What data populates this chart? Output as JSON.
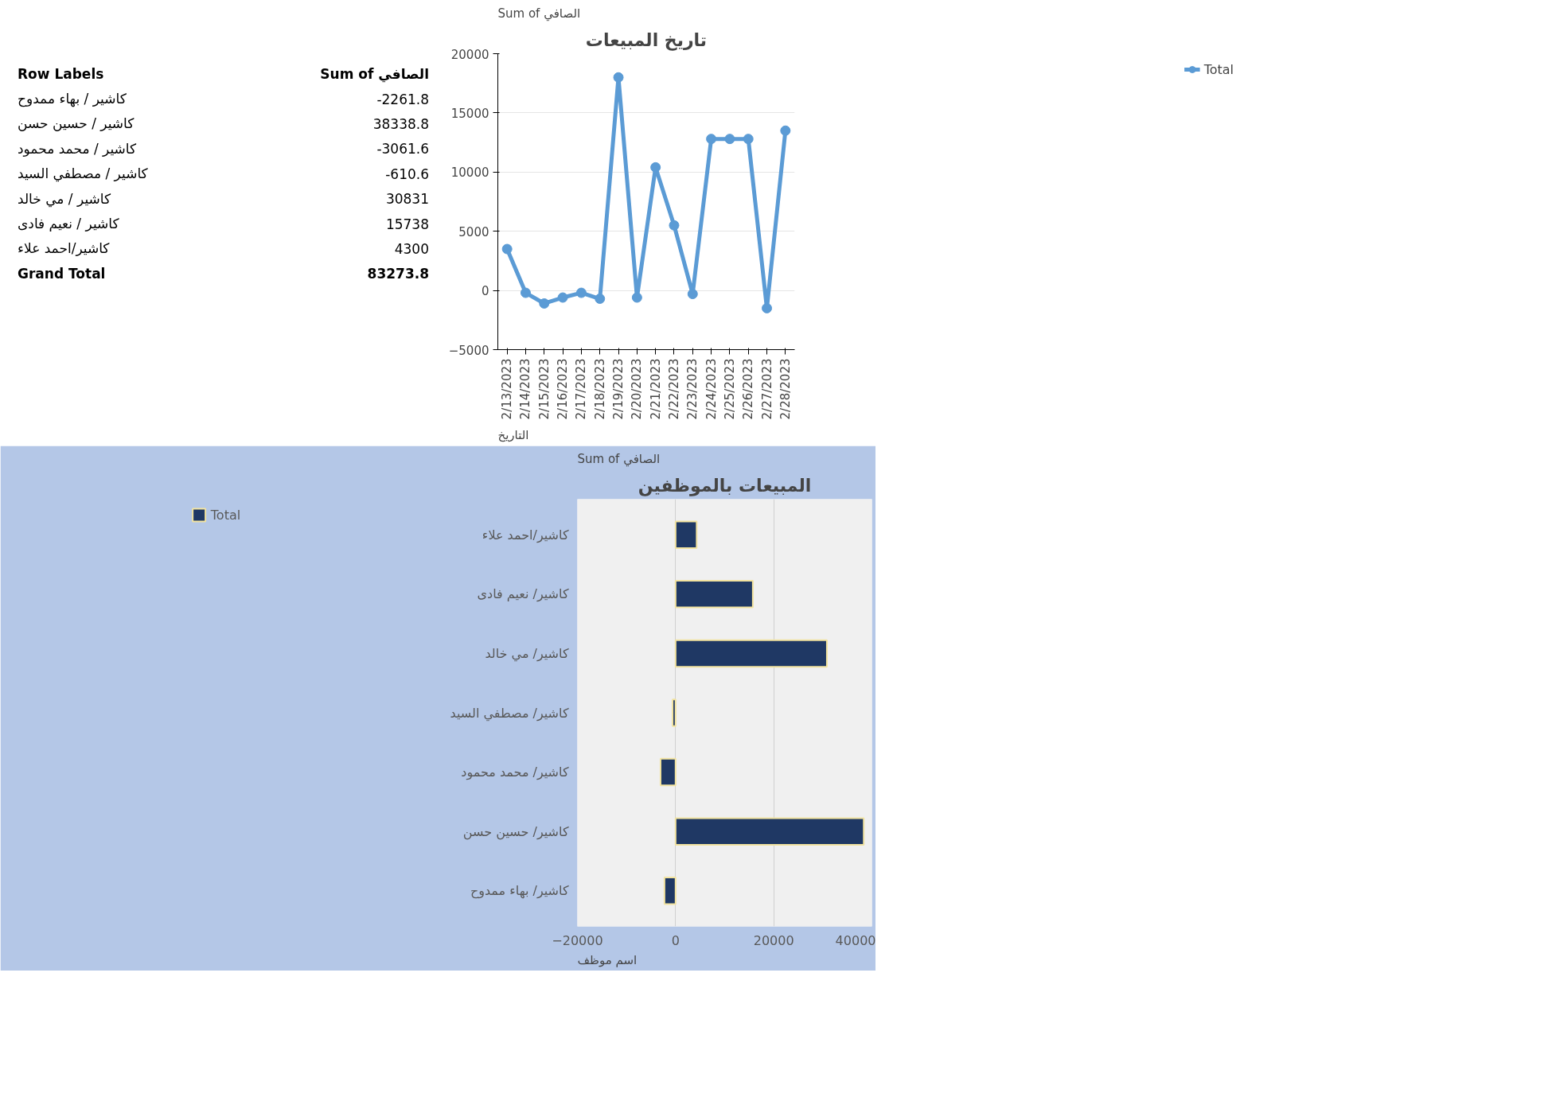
{
  "chart_data": [
    {
      "type": "other",
      "annotations": [
        "Row Labels",
        "Sum of الصافي"
      ],
      "categories": [
        "كاشير / بهاء ممدوح",
        "كاشير / حسين حسن",
        "كاشير / محمد محمود",
        "كاشير / مصطفي السيد",
        "كاشير / مي خالد",
        "كاشير / نعيم فادى",
        "كاشير/احمد علاء",
        "Grand Total"
      ],
      "values": [
        -2261.8,
        38338.8,
        -3061.6,
        -610.6,
        30831,
        15738,
        4300,
        83273.8
      ],
      "data_labels": true
    },
    {
      "type": "line",
      "title": "تاريخ المبيعات",
      "annotations": [
        "Sum of الصافي",
        "التاريخ"
      ],
      "categories": [
        "2/13/2023",
        "2/14/2023",
        "2/15/2023",
        "2/16/2023",
        "2/17/2023",
        "2/18/2023",
        "2/19/2023",
        "2/20/2023",
        "2/21/2023",
        "2/22/2023",
        "2/23/2023",
        "2/24/2023",
        "2/25/2023",
        "2/26/2023",
        "2/27/2023",
        "2/28/2023"
      ],
      "series": [
        {
          "name": "Total",
          "color": "#5b9bd5",
          "values": [
            3500,
            -200,
            -1100,
            -600,
            -200,
            -700,
            18000,
            -600,
            10400,
            5500,
            -300,
            12800,
            12800,
            12800,
            -1500,
            13500
          ]
        }
      ],
      "ylim": [
        -5000,
        20000
      ],
      "yticks": [
        -5000,
        0,
        5000,
        10000,
        15000,
        20000
      ],
      "grid": "y",
      "legend": "right",
      "marker": "circle"
    },
    {
      "type": "bar",
      "orientation": "horizontal",
      "title": "المبيعات بالموظفين",
      "annotations": [
        "Sum of الصافي",
        "اسم موظف"
      ],
      "categories": [
        "كاشير/احمد علاء",
        "كاشير/ نعيم فادى",
        "كاشير/ مي خالد",
        "كاشير/ مصطفي السيد",
        "كاشير/ محمد محمود",
        "كاشير/ حسين حسن",
        "كاشير/ بهاء ممدوح"
      ],
      "series": [
        {
          "name": "Total",
          "color": "#1f3864",
          "values": [
            4300,
            15738,
            30831,
            -610.6,
            -3061.6,
            38338.8,
            -2261.8
          ]
        }
      ],
      "xlim": [
        -20000,
        40000
      ],
      "xticks": [
        -20000,
        0,
        20000,
        40000
      ],
      "grid": "x",
      "legend": "left"
    }
  ]
}
